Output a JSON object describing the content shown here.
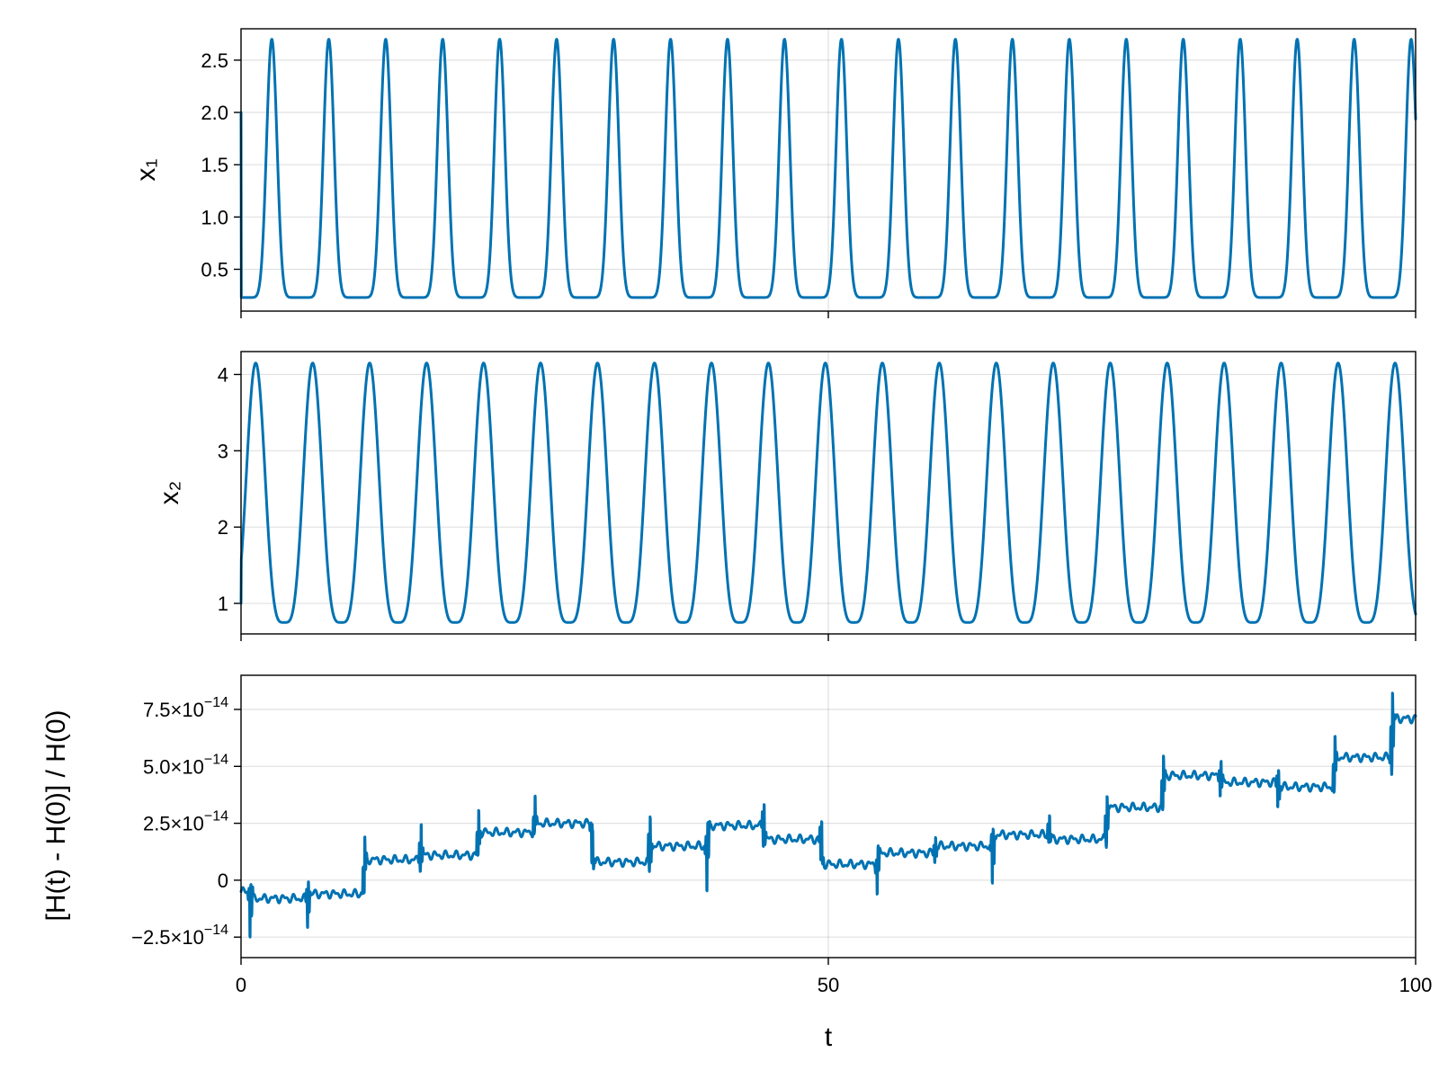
{
  "chart_data": [
    {
      "type": "line",
      "ylabel": "x₁",
      "xlabel": "",
      "xlim": [
        0,
        100
      ],
      "ylim": [
        0.1,
        2.8
      ],
      "yticks": [
        0.5,
        1.0,
        1.5,
        2.0,
        2.5
      ],
      "ytick_labels": [
        "0.5",
        "1.0",
        "1.5",
        "2.0",
        "2.5"
      ],
      "xticks": [
        0,
        50,
        100
      ],
      "xtick_labels": [],
      "grid": true,
      "series": [
        {
          "color": "#0072b2",
          "period": 4.85,
          "min": 0.23,
          "max": 2.7,
          "start": 2.0,
          "start_phase": 0.96,
          "shape_exponent": 6
        }
      ]
    },
    {
      "type": "line",
      "ylabel": "x₂",
      "xlabel": "",
      "xlim": [
        0,
        100
      ],
      "ylim": [
        0.6,
        4.3
      ],
      "yticks": [
        1,
        2,
        3,
        4
      ],
      "ytick_labels": [
        "1",
        "2",
        "3",
        "4"
      ],
      "xticks": [
        0,
        50,
        100
      ],
      "xtick_labels": [],
      "grid": true,
      "series": [
        {
          "color": "#0072b2",
          "period": 4.85,
          "min": 0.75,
          "max": 4.15,
          "start": 1.0,
          "peak_t": 1.25,
          "shape_exponent": 2
        }
      ]
    },
    {
      "type": "line",
      "ylabel": "[H(t) - H(0)] / H(0)",
      "xlabel": "t",
      "xlim": [
        0,
        100
      ],
      "ylim": [
        -3.4e-14,
        9e-14
      ],
      "yticks": [
        -2.5e-14,
        0,
        2.5e-14,
        5e-14,
        7.5e-14
      ],
      "ytick_labels": [
        {
          "mantissa": "−2.5×10",
          "exp": "−14"
        },
        {
          "mantissa": "0",
          "exp": ""
        },
        {
          "mantissa": "2.5×10",
          "exp": "−14"
        },
        {
          "mantissa": "5.0×10",
          "exp": "−14"
        },
        {
          "mantissa": "7.5×10",
          "exp": "−14"
        }
      ],
      "xticks": [
        0,
        50,
        100
      ],
      "xtick_labels": [
        "0",
        "50",
        "100"
      ],
      "grid": true,
      "series": [
        {
          "color": "#0072b2",
          "segments": [
            {
              "t0": 0.0,
              "t1": 1.0,
              "y": -5e-15
            },
            {
              "t0": 1.0,
              "t1": 5.7,
              "y": -8e-15
            },
            {
              "t0": 5.7,
              "t1": 10.5,
              "y": -6e-15
            },
            {
              "t0": 10.5,
              "t1": 15.3,
              "y": 9e-15
            },
            {
              "t0": 15.3,
              "t1": 20.2,
              "y": 1.1e-14
            },
            {
              "t0": 20.2,
              "t1": 25.0,
              "y": 2.1e-14
            },
            {
              "t0": 25.0,
              "t1": 29.9,
              "y": 2.5e-14
            },
            {
              "t0": 29.9,
              "t1": 34.8,
              "y": 8e-15
            },
            {
              "t0": 34.8,
              "t1": 39.7,
              "y": 1.5e-14
            },
            {
              "t0": 39.7,
              "t1": 44.5,
              "y": 2.4e-14
            },
            {
              "t0": 44.5,
              "t1": 49.4,
              "y": 1.8e-14
            },
            {
              "t0": 49.4,
              "t1": 54.2,
              "y": 7e-15
            },
            {
              "t0": 54.2,
              "t1": 59.1,
              "y": 1.2e-14
            },
            {
              "t0": 59.1,
              "t1": 64.0,
              "y": 1.5e-14
            },
            {
              "t0": 64.0,
              "t1": 68.8,
              "y": 2e-14
            },
            {
              "t0": 68.8,
              "t1": 73.7,
              "y": 1.8e-14
            },
            {
              "t0": 73.7,
              "t1": 78.5,
              "y": 3.2e-14
            },
            {
              "t0": 78.5,
              "t1": 83.4,
              "y": 4.6e-14
            },
            {
              "t0": 83.4,
              "t1": 88.3,
              "y": 4.3e-14
            },
            {
              "t0": 88.3,
              "t1": 93.1,
              "y": 4.1e-14
            },
            {
              "t0": 93.1,
              "t1": 98.0,
              "y": 5.4e-14
            },
            {
              "t0": 98.0,
              "t1": 100.0,
              "y": 7.1e-14
            }
          ],
          "spikes": [
            {
              "t": 0.8,
              "lo": -2.8e-14,
              "hi": 0.0
            },
            {
              "t": 5.7,
              "lo": -2.2e-14,
              "hi": 2e-15
            },
            {
              "t": 10.5,
              "lo": -4e-15,
              "hi": 2e-14
            },
            {
              "t": 15.3,
              "lo": 5e-15,
              "hi": 2.9e-14
            },
            {
              "t": 20.2,
              "lo": 1e-14,
              "hi": 3.2e-14
            },
            {
              "t": 25.0,
              "lo": 2e-14,
              "hi": 3.8e-14
            },
            {
              "t": 29.9,
              "lo": 4e-15,
              "hi": 2.6e-14
            },
            {
              "t": 34.8,
              "lo": 2e-15,
              "hi": 3.1e-14
            },
            {
              "t": 39.7,
              "lo": -9e-15,
              "hi": 2.5e-14
            },
            {
              "t": 44.5,
              "lo": 1.5e-14,
              "hi": 3.9e-14
            },
            {
              "t": 49.4,
              "lo": 6e-15,
              "hi": 2.9e-14
            },
            {
              "t": 54.2,
              "lo": -8e-15,
              "hi": 1.5e-14
            },
            {
              "t": 59.1,
              "lo": 7e-15,
              "hi": 2e-14
            },
            {
              "t": 64.0,
              "lo": -7e-15,
              "hi": 2.2e-14
            },
            {
              "t": 68.8,
              "lo": 1.6e-14,
              "hi": 3.1e-14
            },
            {
              "t": 73.7,
              "lo": 1.5e-14,
              "hi": 4e-14
            },
            {
              "t": 78.5,
              "lo": 3e-14,
              "hi": 5.6e-14
            },
            {
              "t": 83.4,
              "lo": 3.7e-14,
              "hi": 5.5e-14
            },
            {
              "t": 88.3,
              "lo": 3e-14,
              "hi": 5e-14
            },
            {
              "t": 93.1,
              "lo": 3.7e-14,
              "hi": 6.3e-14
            },
            {
              "t": 98.0,
              "lo": 4.5e-14,
              "hi": 8.5e-14
            }
          ]
        }
      ]
    }
  ]
}
